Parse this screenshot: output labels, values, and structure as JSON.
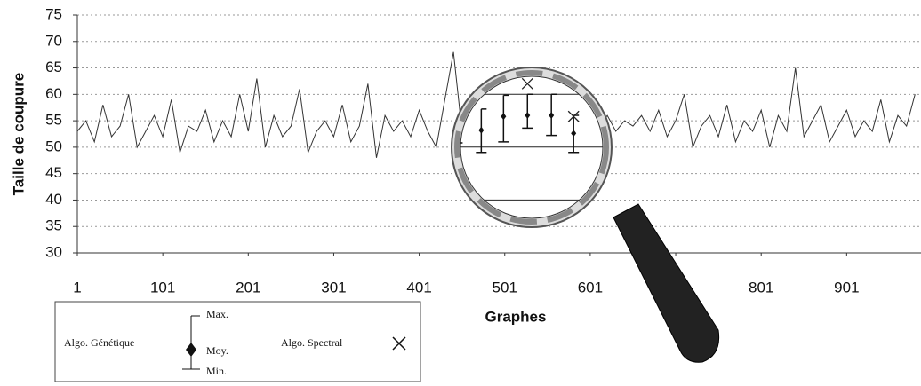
{
  "chart_data": {
    "type": "line",
    "x_label": "Graphes",
    "y_label": "Taille de coupure",
    "xlim": [
      1,
      988
    ],
    "ylim": [
      30,
      75
    ],
    "xticks": [
      1,
      101,
      201,
      301,
      401,
      501,
      601,
      701,
      801,
      901
    ],
    "yticks": [
      30,
      35,
      40,
      45,
      50,
      55,
      60,
      65,
      70,
      75
    ],
    "grid": true,
    "x": [
      1,
      11,
      21,
      31,
      41,
      51,
      61,
      71,
      81,
      91,
      101,
      111,
      121,
      131,
      141,
      151,
      161,
      171,
      181,
      191,
      201,
      211,
      221,
      231,
      241,
      251,
      261,
      271,
      281,
      291,
      301,
      311,
      321,
      331,
      341,
      351,
      361,
      371,
      381,
      391,
      401,
      411,
      421,
      431,
      441,
      451,
      461,
      471,
      481,
      491,
      501,
      511,
      521,
      531,
      541,
      551,
      561,
      571,
      581,
      591,
      601,
      611,
      621,
      631,
      641,
      651,
      661,
      671,
      681,
      691,
      701,
      711,
      721,
      731,
      741,
      751,
      761,
      771,
      781,
      791,
      801,
      811,
      821,
      831,
      841,
      851,
      861,
      871,
      881,
      891,
      901,
      911,
      921,
      931,
      941,
      951,
      961,
      971,
      981
    ],
    "values": [
      53,
      55,
      51,
      58,
      52,
      54,
      60,
      50,
      53,
      56,
      52,
      59,
      49,
      54,
      53,
      57,
      51,
      55,
      52,
      60,
      53,
      63,
      50,
      56,
      52,
      54,
      61,
      49,
      53,
      55,
      52,
      58,
      51,
      54,
      62,
      48,
      56,
      53,
      55,
      52,
      57,
      53,
      50,
      59,
      68,
      53,
      55,
      54,
      56,
      55,
      54,
      53,
      56,
      55,
      54,
      56,
      53,
      55,
      54,
      56,
      55,
      54,
      56,
      53,
      55,
      54,
      56,
      53,
      57,
      52,
      55,
      60,
      50,
      54,
      56,
      52,
      58,
      51,
      55,
      53,
      57,
      50,
      56,
      53,
      65,
      52,
      55,
      58,
      51,
      54,
      57,
      52,
      55,
      53,
      59,
      51,
      56,
      54,
      60
    ],
    "color": "#333333",
    "inset": {
      "x": [
        462,
        475,
        489,
        503,
        516,
        530,
        544,
        557
      ],
      "lines": [
        45,
        50,
        55,
        60
      ],
      "series": [
        {
          "name": "Algo. Génétique",
          "mean": [
            54.2,
            51.3,
            52.7,
            51.6,
            52.9,
            53.0,
            53.0,
            51.3
          ],
          "max": [
            56.0,
            53.4,
            53.9,
            53.6,
            54.9,
            55.0,
            55.0,
            53.0
          ],
          "min": [
            52.4,
            50.3,
            50.4,
            49.5,
            50.5,
            51.8,
            51.1,
            49.5
          ]
        },
        {
          "name": "Algo. Spectral",
          "values": [
            55.5,
            47.7,
            55.7,
            55.7,
            59.6,
            56.0,
            57.4,
            52.9
          ]
        }
      ]
    },
    "legend_keys": [
      "Max.",
      "Moy.",
      "Min."
    ]
  }
}
